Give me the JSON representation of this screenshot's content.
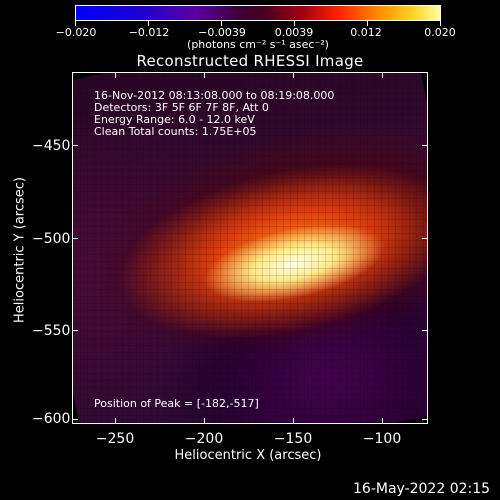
{
  "colorbar": {
    "tick_labels": [
      "−0.020",
      "−0.012",
      "−0.0039",
      "0.0039",
      "0.012",
      "0.020"
    ],
    "units": "(photons cm⁻² s⁻¹ asec⁻²)"
  },
  "title": "Reconstructed RHESSI Image",
  "info": {
    "line1": "16-Nov-2012 08:13:08.000 to 08:19:08.000",
    "line2": "Detectors: 3F 5F 6F 7F 8F, Att 0",
    "line3": "Energy Range: 6.0 - 12.0 keV",
    "line4": "Clean    Total counts: 1.75E+05",
    "peak": "Position of Peak = [-182,-517]"
  },
  "axes": {
    "y_ticks": [
      "−450",
      "−500",
      "−550",
      "−600"
    ],
    "x_ticks": [
      "−250",
      "−200",
      "−150",
      "−100"
    ],
    "y_title": "Heliocentric Y (arcsec)",
    "x_title": "Heliocentric X (arcsec)"
  },
  "footer": {
    "timestamp": "16-May-2022 02:15"
  }
}
